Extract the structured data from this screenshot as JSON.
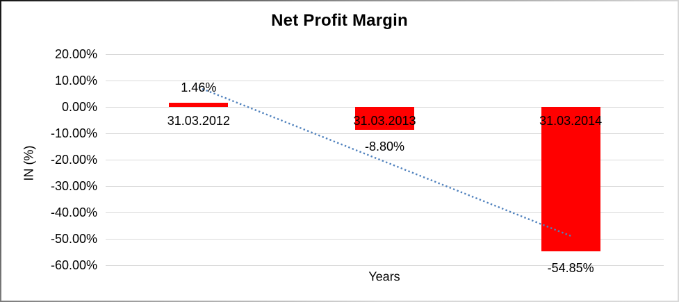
{
  "chart_data": {
    "type": "bar",
    "title": "Net Profit Margin",
    "xlabel": "Years",
    "ylabel": "IN (%)",
    "categories": [
      "31.03.2012",
      "31.03.2013",
      "31.03.2014"
    ],
    "values": [
      1.46,
      -8.8,
      -54.85
    ],
    "data_labels": [
      "1.46%",
      "-8.80%",
      "-54.85%"
    ],
    "bar_color": "#ff0000",
    "ylim": [
      -60,
      20
    ],
    "yticks": {
      "values": [
        20,
        10,
        0,
        -10,
        -20,
        -30,
        -40,
        -50,
        -60
      ],
      "labels": [
        "20.00%",
        "10.00%",
        "0.00%",
        "-10.00%",
        "-20.00%",
        "-30.00%",
        "-40.00%",
        "-50.00%",
        "-60.00%"
      ]
    },
    "grid": true,
    "legend": "none",
    "trendline": {
      "type": "linear",
      "style": "dotted",
      "color": "#4f81bd",
      "start_value": 7.42,
      "end_value": -48.89
    }
  }
}
